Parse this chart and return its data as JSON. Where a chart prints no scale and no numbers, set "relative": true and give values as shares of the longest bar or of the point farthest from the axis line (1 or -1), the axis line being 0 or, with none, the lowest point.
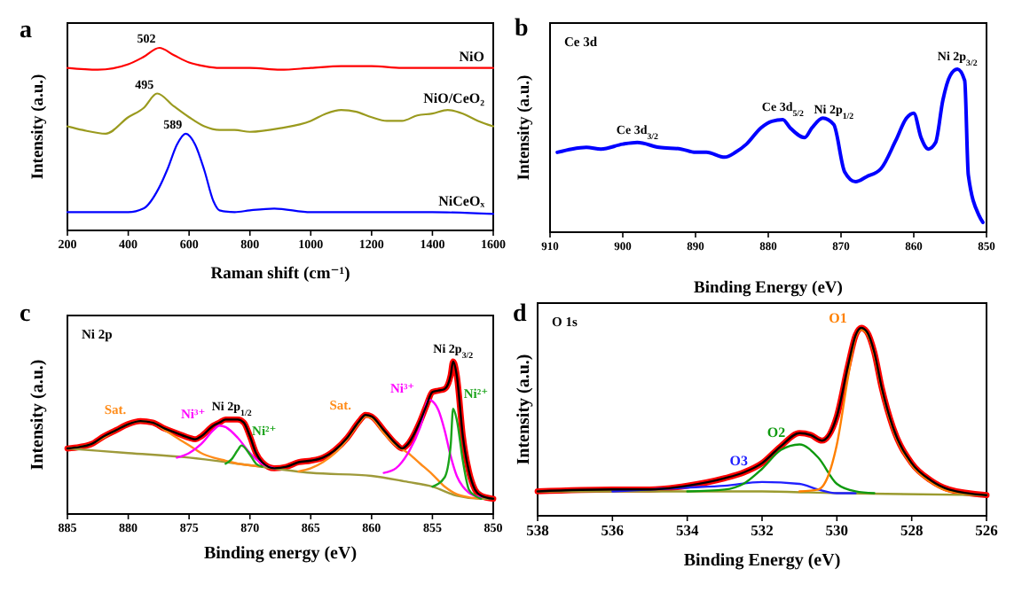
{
  "chart_data": [
    {
      "type": "line",
      "title": "a",
      "xlabel": "Raman shift (cm⁻¹)",
      "ylabel": "Intensity (a.u.)",
      "relative": true,
      "tick_labels": "x",
      "xlim": [
        200,
        1600
      ],
      "xticks": [
        200,
        400,
        600,
        800,
        1000,
        1200,
        1400,
        1600
      ],
      "series": [
        {
          "name": "NiO",
          "color": "#ff0000",
          "x": [
            200,
            300,
            400,
            450,
            502,
            550,
            600,
            650,
            700,
            800,
            900,
            1000,
            1100,
            1200,
            1300,
            1400,
            1500,
            1600
          ],
          "values": [
            0.89,
            0.88,
            0.91,
            0.95,
            1.0,
            0.96,
            0.92,
            0.9,
            0.89,
            0.89,
            0.88,
            0.89,
            0.9,
            0.9,
            0.89,
            0.89,
            0.89,
            0.89
          ]
        },
        {
          "name": "NiO/CeO₂",
          "color": "#9a9a1e",
          "x": [
            200,
            250,
            326,
            400,
            450,
            495,
            550,
            600,
            650,
            700,
            750,
            800,
            900,
            1000,
            1050,
            1100,
            1150,
            1200,
            1250,
            1300,
            1350,
            1400,
            1450,
            1500,
            1550,
            1600
          ],
          "values": [
            0.57,
            0.55,
            0.53,
            0.62,
            0.67,
            0.75,
            0.68,
            0.62,
            0.57,
            0.55,
            0.55,
            0.54,
            0.56,
            0.6,
            0.64,
            0.66,
            0.65,
            0.62,
            0.6,
            0.6,
            0.63,
            0.64,
            0.66,
            0.64,
            0.6,
            0.57
          ]
        },
        {
          "name": "NiCeOₓ",
          "color": "#0000ff",
          "x": [
            200,
            300,
            400,
            450,
            500,
            530,
            560,
            589,
            620,
            650,
            680,
            700,
            750,
            800,
            880,
            1000,
            1100,
            1200,
            1400,
            1600
          ],
          "values": [
            0.1,
            0.1,
            0.1,
            0.12,
            0.23,
            0.34,
            0.47,
            0.53,
            0.47,
            0.33,
            0.16,
            0.11,
            0.1,
            0.11,
            0.12,
            0.1,
            0.1,
            0.1,
            0.1,
            0.09
          ]
        }
      ],
      "annotations": [
        {
          "text": "502",
          "x": 502,
          "y": 1.0
        },
        {
          "text": "495",
          "x": 495,
          "y": 0.75
        },
        {
          "text": "589",
          "x": 589,
          "y": 0.53
        }
      ]
    },
    {
      "type": "line",
      "title": "b",
      "subtitle": "Ce 3d",
      "xlabel": "Binding Energy (eV)",
      "ylabel": "Intensity (a.u.)",
      "relative": true,
      "tick_labels": "x",
      "xlim": [
        910,
        850
      ],
      "xticks": [
        910,
        900,
        890,
        880,
        870,
        860,
        850
      ],
      "x": [
        909,
        907,
        905,
        903,
        900,
        898,
        895,
        892,
        890,
        888.5,
        886,
        884.5,
        883,
        881,
        879.5,
        878,
        877,
        875,
        874,
        872.5,
        871,
        869.5,
        868,
        866.5,
        864.5,
        862.5,
        861,
        860,
        859,
        858,
        857,
        856,
        855,
        854,
        853,
        852.5,
        851,
        850.5
      ],
      "series": [
        {
          "color": "#0000ff",
          "values": [
            0.49,
            0.51,
            0.52,
            0.51,
            0.54,
            0.55,
            0.52,
            0.51,
            0.49,
            0.49,
            0.46,
            0.49,
            0.54,
            0.64,
            0.68,
            0.69,
            0.64,
            0.58,
            0.64,
            0.7,
            0.66,
            0.37,
            0.31,
            0.34,
            0.39,
            0.56,
            0.7,
            0.73,
            0.58,
            0.51,
            0.55,
            0.81,
            0.96,
            1.0,
            0.93,
            0.35,
            0.1,
            0.06
          ]
        }
      ],
      "annotations": [
        {
          "text": "Ce 3d$_{3/2}$",
          "x": 898,
          "y": 0.55
        },
        {
          "text": "Ce 3d$_{5/2}$",
          "x": 878,
          "y": 0.69
        },
        {
          "text": "Ni 2p$_{1/2}$",
          "x": 871,
          "y": 0.66
        },
        {
          "text": "Ni 2p$_{3/2}$",
          "x": 854,
          "y": 1.0
        }
      ]
    },
    {
      "type": "line",
      "title": "c",
      "subtitle": "Ni 2p",
      "xlabel": "Binding energy (eV)",
      "ylabel": "Intensity (a.u.)",
      "relative": true,
      "tick_labels": "x",
      "xlim": [
        885,
        850
      ],
      "xticks": [
        885,
        880,
        875,
        870,
        865,
        860,
        855,
        850
      ],
      "series": [
        {
          "color": "#ff0000",
          "x": [
            885,
            884,
            883,
            882,
            881,
            880,
            879,
            878,
            877,
            876,
            875,
            874.5,
            874,
            873,
            872.5,
            872,
            871,
            870.5,
            870,
            869.5,
            869,
            868,
            867,
            866,
            865,
            864,
            863,
            862,
            861,
            860.5,
            860,
            859,
            858,
            857.5,
            857,
            856,
            855.5,
            855,
            854.5,
            854,
            853.5,
            853.3,
            853,
            852.5,
            852,
            851.5,
            851,
            850
          ],
          "values": [
            0.43,
            0.44,
            0.46,
            0.51,
            0.55,
            0.59,
            0.61,
            0.6,
            0.56,
            0.53,
            0.5,
            0.49,
            0.51,
            0.58,
            0.6,
            0.62,
            0.62,
            0.6,
            0.51,
            0.4,
            0.34,
            0.3,
            0.31,
            0.34,
            0.35,
            0.37,
            0.42,
            0.5,
            0.61,
            0.65,
            0.64,
            0.55,
            0.46,
            0.43,
            0.46,
            0.61,
            0.71,
            0.8,
            0.81,
            0.82,
            0.91,
            1.0,
            0.91,
            0.51,
            0.28,
            0.16,
            0.12,
            0.1
          ]
        },
        {
          "color": "#9e9a3a",
          "x": [
            885,
            880,
            875,
            870,
            865,
            860,
            857,
            855,
            853,
            851,
            850
          ],
          "values": [
            0.43,
            0.4,
            0.37,
            0.32,
            0.27,
            0.25,
            0.21,
            0.18,
            0.12,
            0.1,
            0.1
          ]
        },
        {
          "name": "Sat.",
          "color": "#ff8c1a",
          "x": [
            885,
            883,
            881,
            880,
            879,
            878,
            877,
            876,
            875,
            874,
            873,
            872,
            871,
            870,
            869
          ],
          "values": [
            0.43,
            0.46,
            0.55,
            0.59,
            0.61,
            0.6,
            0.55,
            0.5,
            0.45,
            0.4,
            0.37,
            0.35,
            0.33,
            0.32,
            0.31
          ]
        },
        {
          "name": "Sat.",
          "color": "#ff8c1a",
          "x": [
            866,
            865,
            864,
            863,
            862,
            861,
            860.5,
            860,
            859,
            858,
            857,
            856,
            855,
            854,
            853,
            852,
            851
          ],
          "values": [
            0.28,
            0.3,
            0.34,
            0.4,
            0.49,
            0.6,
            0.64,
            0.63,
            0.53,
            0.45,
            0.4,
            0.33,
            0.26,
            0.18,
            0.13,
            0.11,
            0.1
          ]
        },
        {
          "name": "Ni³⁺",
          "color": "#ff00ff",
          "x": [
            876,
            875,
            874,
            873,
            872.5,
            872,
            871,
            870,
            869,
            868
          ],
          "values": [
            0.37,
            0.4,
            0.46,
            0.55,
            0.58,
            0.57,
            0.5,
            0.4,
            0.33,
            0.3
          ]
        },
        {
          "name": "Ni²⁺",
          "color": "#1aa31a",
          "x": [
            872,
            871.5,
            871,
            870.7,
            870,
            869.5,
            869
          ],
          "values": [
            0.33,
            0.36,
            0.42,
            0.45,
            0.39,
            0.33,
            0.31
          ]
        },
        {
          "name": "Ni³⁺",
          "color": "#ff00ff",
          "x": [
            859,
            858,
            857,
            856,
            855.3,
            855,
            854.5,
            854,
            853.5,
            853,
            852.5,
            852,
            851
          ],
          "values": [
            0.27,
            0.3,
            0.4,
            0.57,
            0.75,
            0.74,
            0.68,
            0.55,
            0.38,
            0.25,
            0.18,
            0.14,
            0.11
          ]
        },
        {
          "name": "Ni²⁺",
          "color": "#1aa31a",
          "x": [
            855,
            854,
            853.5,
            853.3,
            853,
            852.5,
            852,
            851.5,
            851
          ],
          "values": [
            0.18,
            0.24,
            0.45,
            0.69,
            0.62,
            0.35,
            0.16,
            0.12,
            0.1
          ]
        },
        {
          "color": "#000000",
          "x": [
            885,
            884,
            883,
            882,
            881,
            880,
            879,
            878,
            877,
            876,
            875,
            874.5,
            874,
            873,
            872.5,
            872,
            871,
            870.5,
            870,
            869.5,
            869,
            868,
            867,
            866,
            865,
            864,
            863,
            862,
            861,
            860.5,
            860,
            859,
            858,
            857.5,
            857,
            856,
            855.5,
            855,
            854.5,
            854,
            853.5,
            853.3,
            853,
            852.5,
            852,
            851.5,
            851,
            850
          ],
          "values": [
            0.43,
            0.44,
            0.46,
            0.51,
            0.55,
            0.59,
            0.61,
            0.6,
            0.56,
            0.53,
            0.5,
            0.49,
            0.51,
            0.58,
            0.6,
            0.62,
            0.62,
            0.6,
            0.51,
            0.4,
            0.34,
            0.3,
            0.31,
            0.34,
            0.35,
            0.37,
            0.42,
            0.5,
            0.61,
            0.65,
            0.64,
            0.55,
            0.46,
            0.43,
            0.46,
            0.61,
            0.71,
            0.8,
            0.81,
            0.82,
            0.91,
            1.0,
            0.91,
            0.51,
            0.28,
            0.16,
            0.12,
            0.1
          ]
        }
      ],
      "annotations": [
        {
          "text": "Ni 2p$_{1/2}$",
          "x": 871.5,
          "y": 0.62
        },
        {
          "text": "Ni 2p$_{3/2}$",
          "x": 853.3,
          "y": 1.0
        }
      ]
    },
    {
      "type": "line",
      "title": "d",
      "subtitle": "O 1s",
      "xlabel": "Binding Energy (eV)",
      "ylabel": "Intensity (a.u.)",
      "relative": true,
      "tick_labels": "x",
      "xlim": [
        538,
        526
      ],
      "xticks": [
        538,
        536,
        534,
        532,
        530,
        528,
        526
      ],
      "series": [
        {
          "color": "#ff0000",
          "x": [
            538,
            536,
            535,
            534,
            533,
            532.5,
            532,
            531.5,
            531,
            530.7,
            530.4,
            530,
            529.7,
            529.5,
            529.35,
            529.2,
            529,
            528.8,
            528.5,
            528,
            527.5,
            527,
            526
          ],
          "values": [
            0.13,
            0.14,
            0.14,
            0.16,
            0.2,
            0.23,
            0.28,
            0.37,
            0.44,
            0.43,
            0.4,
            0.53,
            0.8,
            0.96,
            1.0,
            0.98,
            0.87,
            0.68,
            0.47,
            0.28,
            0.19,
            0.14,
            0.11
          ]
        },
        {
          "color": "#9b9b2f",
          "x": [
            538,
            532,
            530,
            526
          ],
          "values": [
            0.13,
            0.13,
            0.12,
            0.11
          ]
        },
        {
          "name": "O3",
          "color": "#2020ff",
          "x": [
            536,
            535,
            534,
            533,
            532,
            531,
            530.5,
            530,
            529.5
          ],
          "values": [
            0.13,
            0.14,
            0.15,
            0.16,
            0.18,
            0.17,
            0.14,
            0.12,
            0.12
          ]
        },
        {
          "name": "O2",
          "color": "#0f9a0f",
          "x": [
            534,
            533,
            532.5,
            532,
            531.5,
            531,
            530.5,
            530,
            529.5,
            529
          ],
          "values": [
            0.13,
            0.14,
            0.17,
            0.25,
            0.35,
            0.38,
            0.31,
            0.17,
            0.13,
            0.12
          ]
        },
        {
          "name": "O1",
          "color": "#ff8000",
          "x": [
            531,
            530.5,
            530.2,
            530,
            529.7,
            529.5,
            529.35,
            529.2,
            529,
            528.8,
            528.5,
            528,
            527.5,
            527,
            526
          ],
          "values": [
            0.13,
            0.14,
            0.23,
            0.38,
            0.74,
            0.95,
            0.99,
            0.97,
            0.86,
            0.67,
            0.46,
            0.27,
            0.18,
            0.13,
            0.11
          ]
        },
        {
          "color": "#000000",
          "x": [
            538,
            536,
            535,
            534,
            533,
            532.5,
            532,
            531.5,
            531,
            530.7,
            530.4,
            530,
            529.7,
            529.5,
            529.35,
            529.2,
            529,
            528.8,
            528.5,
            528,
            527.5,
            527,
            526
          ],
          "values": [
            0.13,
            0.14,
            0.14,
            0.16,
            0.2,
            0.23,
            0.28,
            0.37,
            0.44,
            0.43,
            0.4,
            0.53,
            0.8,
            0.96,
            1.0,
            0.98,
            0.87,
            0.68,
            0.47,
            0.28,
            0.19,
            0.14,
            0.11
          ]
        }
      ]
    }
  ]
}
